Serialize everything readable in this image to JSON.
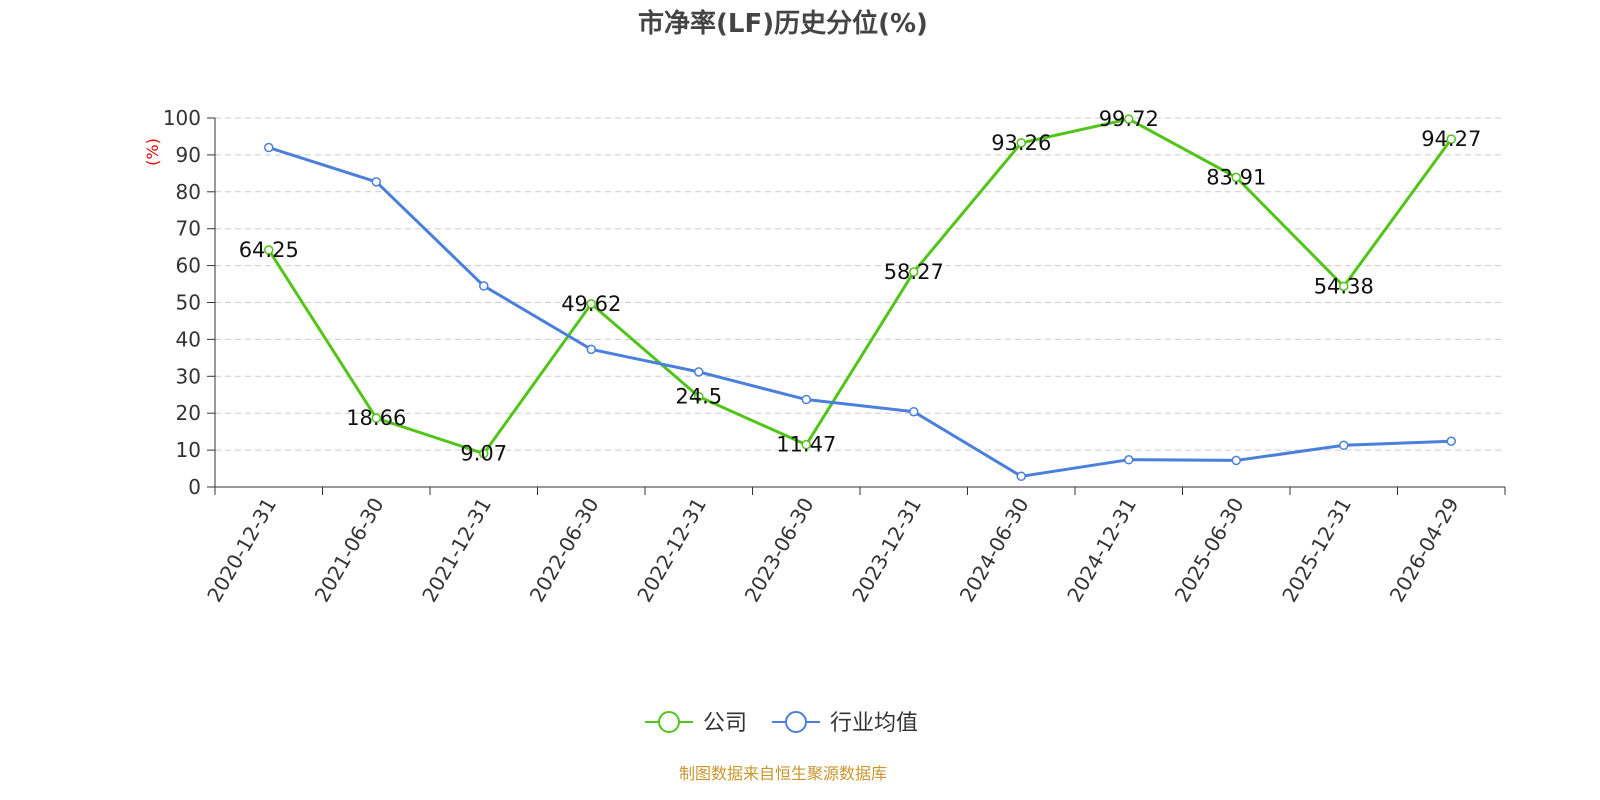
{
  "chart_data": {
    "type": "line",
    "title": "市净率(LF)历史分位(%)",
    "y_label": "(%)",
    "categories": [
      "2020-12-31",
      "2021-06-30",
      "2021-12-31",
      "2022-06-30",
      "2022-12-31",
      "2023-06-30",
      "2023-12-31",
      "2024-06-30",
      "2024-12-31",
      "2025-06-30",
      "2025-12-31",
      "2026-04-29"
    ],
    "series": [
      {
        "name": "公司",
        "color": "#52c41a",
        "values": [
          64.25,
          18.66,
          9.07,
          49.62,
          24.5,
          11.47,
          58.27,
          93.26,
          99.72,
          83.91,
          54.38,
          94.27
        ],
        "show_labels": true
      },
      {
        "name": "行业均值",
        "color": "#4a7fdc",
        "values": [
          92,
          82.7,
          54.5,
          37.3,
          31.2,
          23.7,
          20.4,
          2.9,
          7.4,
          7.2,
          11.3,
          12.4
        ],
        "show_labels": false
      }
    ],
    "ylim": [
      0,
      100
    ],
    "yticks": [
      0,
      10,
      20,
      30,
      40,
      50,
      60,
      70,
      80,
      90,
      100
    ],
    "grid": true,
    "source": "制图数据来自恒生聚源数据库"
  }
}
